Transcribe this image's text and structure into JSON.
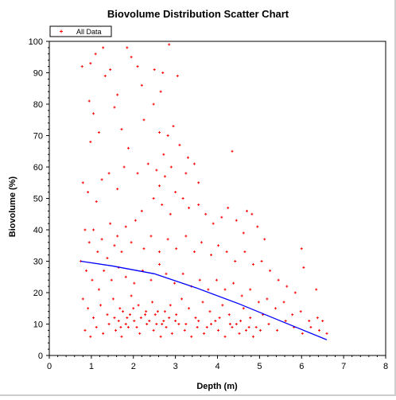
{
  "chart_data": {
    "type": "scatter",
    "title": "Biovolume Distribution Scatter Chart",
    "xlabel": "Depth (m)",
    "ylabel": "Biovolume (%)",
    "xlim": [
      0,
      8
    ],
    "ylim": [
      0,
      100
    ],
    "xticks": [
      "0",
      "1",
      "2",
      "3",
      "4",
      "5",
      "6",
      "7",
      "8"
    ],
    "yticks": [
      "0",
      "10",
      "20",
      "30",
      "40",
      "50",
      "60",
      "70",
      "80",
      "90",
      "100"
    ],
    "grid": false,
    "legend": {
      "placement": "top-left",
      "entries": [
        "All Data"
      ]
    },
    "colors": {
      "points": "#ff0000",
      "trend": "#0000ff",
      "axes": "#000000"
    },
    "series": [
      {
        "name": "All Data",
        "marker": "plus",
        "points": [
          [
            0.78,
            92
          ],
          [
            0.98,
            93
          ],
          [
            1.1,
            96
          ],
          [
            1.28,
            98
          ],
          [
            1.45,
            91
          ],
          [
            1.33,
            89
          ],
          [
            0.95,
            81
          ],
          [
            1.05,
            77
          ],
          [
            1.18,
            71
          ],
          [
            0.98,
            68
          ],
          [
            1.62,
            83
          ],
          [
            1.55,
            79
          ],
          [
            1.85,
            98
          ],
          [
            1.95,
            95
          ],
          [
            2.1,
            92
          ],
          [
            2.2,
            86
          ],
          [
            2.5,
            91
          ],
          [
            2.7,
            90
          ],
          [
            2.85,
            99
          ],
          [
            3.05,
            89
          ],
          [
            2.65,
            84
          ],
          [
            2.48,
            80
          ],
          [
            1.72,
            72
          ],
          [
            1.88,
            66
          ],
          [
            2.25,
            75
          ],
          [
            2.62,
            71
          ],
          [
            2.82,
            70
          ],
          [
            2.95,
            73
          ],
          [
            3.1,
            67
          ],
          [
            2.72,
            64
          ],
          [
            4.35,
            65
          ],
          [
            3.3,
            63
          ],
          [
            3.45,
            61
          ],
          [
            3.25,
            58
          ],
          [
            3.55,
            55
          ],
          [
            0.8,
            55
          ],
          [
            0.92,
            52
          ],
          [
            1.12,
            49
          ],
          [
            1.25,
            56
          ],
          [
            1.42,
            58
          ],
          [
            1.62,
            53
          ],
          [
            1.78,
            60
          ],
          [
            2.1,
            58
          ],
          [
            2.35,
            61
          ],
          [
            2.55,
            59
          ],
          [
            2.62,
            54
          ],
          [
            2.75,
            57
          ],
          [
            2.9,
            60
          ],
          [
            3.0,
            52
          ],
          [
            3.18,
            50
          ],
          [
            3.32,
            47
          ],
          [
            3.55,
            48
          ],
          [
            3.72,
            45
          ],
          [
            3.9,
            42
          ],
          [
            4.1,
            44
          ],
          [
            4.25,
            47
          ],
          [
            4.45,
            43
          ],
          [
            4.62,
            39
          ],
          [
            4.82,
            45
          ],
          [
            4.95,
            41
          ],
          [
            5.12,
            37
          ],
          [
            4.7,
            46
          ],
          [
            2.48,
            50
          ],
          [
            2.68,
            48
          ],
          [
            2.88,
            45
          ],
          [
            2.2,
            46
          ],
          [
            2.05,
            43
          ],
          [
            1.82,
            41
          ],
          [
            1.62,
            38
          ],
          [
            1.45,
            42
          ],
          [
            1.25,
            37
          ],
          [
            1.05,
            40
          ],
          [
            0.85,
            40
          ],
          [
            0.95,
            36
          ],
          [
            1.15,
            33
          ],
          [
            1.38,
            31
          ],
          [
            1.55,
            35
          ],
          [
            1.72,
            33
          ],
          [
            1.95,
            36
          ],
          [
            2.25,
            34
          ],
          [
            2.42,
            38
          ],
          [
            2.62,
            33
          ],
          [
            2.82,
            37
          ],
          [
            3.02,
            34
          ],
          [
            3.25,
            38
          ],
          [
            3.45,
            33
          ],
          [
            3.62,
            36
          ],
          [
            3.85,
            32
          ],
          [
            4.02,
            35
          ],
          [
            4.22,
            33
          ],
          [
            4.42,
            30
          ],
          [
            4.65,
            33
          ],
          [
            4.85,
            29
          ],
          [
            5.05,
            30
          ],
          [
            5.25,
            27
          ],
          [
            5.45,
            24
          ],
          [
            5.65,
            22
          ],
          [
            5.85,
            20
          ],
          [
            6.0,
            34
          ],
          [
            6.05,
            28
          ],
          [
            6.35,
            21
          ],
          [
            6.5,
            11
          ],
          [
            6.6,
            7
          ],
          [
            0.75,
            30
          ],
          [
            0.88,
            27
          ],
          [
            1.02,
            24
          ],
          [
            1.18,
            21
          ],
          [
            1.3,
            27
          ],
          [
            1.48,
            24
          ],
          [
            1.65,
            28
          ],
          [
            1.82,
            25
          ],
          [
            2.02,
            23
          ],
          [
            2.22,
            27
          ],
          [
            2.42,
            24
          ],
          [
            2.62,
            29
          ],
          [
            2.78,
            26
          ],
          [
            2.98,
            23
          ],
          [
            3.18,
            26
          ],
          [
            3.38,
            22
          ],
          [
            3.58,
            24
          ],
          [
            3.78,
            21
          ],
          [
            3.98,
            24
          ],
          [
            4.18,
            21
          ],
          [
            4.38,
            23
          ],
          [
            4.58,
            19
          ],
          [
            4.78,
            21
          ],
          [
            4.98,
            17
          ],
          [
            5.18,
            18
          ],
          [
            5.38,
            15
          ],
          [
            5.58,
            17
          ],
          [
            5.78,
            13
          ],
          [
            5.98,
            14
          ],
          [
            6.18,
            11
          ],
          [
            6.38,
            12
          ],
          [
            0.8,
            18
          ],
          [
            0.92,
            15
          ],
          [
            1.05,
            12
          ],
          [
            1.22,
            16
          ],
          [
            1.38,
            13
          ],
          [
            1.52,
            18
          ],
          [
            1.68,
            15
          ],
          [
            1.85,
            12
          ],
          [
            1.95,
            19
          ],
          [
            2.12,
            16
          ],
          [
            2.28,
            13
          ],
          [
            2.45,
            17
          ],
          [
            2.58,
            14
          ],
          [
            2.72,
            11
          ],
          [
            2.88,
            16
          ],
          [
            3.02,
            13
          ],
          [
            3.15,
            18
          ],
          [
            3.32,
            15
          ],
          [
            3.48,
            12
          ],
          [
            3.65,
            17
          ],
          [
            3.82,
            14
          ],
          [
            3.95,
            11
          ],
          [
            4.12,
            16
          ],
          [
            4.28,
            13
          ],
          [
            4.45,
            10
          ],
          [
            4.62,
            15
          ],
          [
            4.78,
            12
          ],
          [
            4.92,
            9
          ],
          [
            5.08,
            13
          ],
          [
            5.22,
            10
          ],
          [
            5.42,
            8
          ],
          [
            5.62,
            11
          ],
          [
            5.82,
            9
          ],
          [
            6.02,
            7
          ],
          [
            6.22,
            9
          ],
          [
            6.42,
            8
          ],
          [
            0.85,
            8
          ],
          [
            0.98,
            6
          ],
          [
            1.12,
            9
          ],
          [
            1.28,
            7
          ],
          [
            1.42,
            10
          ],
          [
            1.58,
            8
          ],
          [
            1.72,
            6
          ],
          [
            1.88,
            9
          ],
          [
            2.02,
            11
          ],
          [
            2.15,
            7
          ],
          [
            2.32,
            10
          ],
          [
            2.48,
            8
          ],
          [
            2.65,
            6
          ],
          [
            2.78,
            9
          ],
          [
            2.92,
            7
          ],
          [
            3.08,
            10
          ],
          [
            3.22,
            8
          ],
          [
            3.38,
            6
          ],
          [
            3.52,
            9
          ],
          [
            3.68,
            7
          ],
          [
            3.85,
            10
          ],
          [
            4.02,
            8
          ],
          [
            4.18,
            6
          ],
          [
            4.35,
            9
          ],
          [
            4.52,
            7
          ],
          [
            4.68,
            8
          ],
          [
            4.85,
            6
          ],
          [
            5.02,
            8
          ],
          [
            1.82,
            10
          ],
          [
            1.92,
            13
          ],
          [
            2.08,
            9
          ],
          [
            2.18,
            12
          ],
          [
            2.38,
            11
          ],
          [
            2.52,
            13
          ],
          [
            2.68,
            10
          ],
          [
            2.85,
            12
          ],
          [
            1.65,
            11
          ],
          [
            1.75,
            14
          ],
          [
            2.0,
            15
          ],
          [
            2.3,
            14
          ],
          [
            2.55,
            10
          ],
          [
            2.75,
            14
          ],
          [
            3.0,
            11
          ],
          [
            3.25,
            10
          ],
          [
            3.55,
            11
          ],
          [
            3.75,
            9
          ],
          [
            4.05,
            12
          ],
          [
            4.3,
            10
          ],
          [
            4.55,
            11
          ],
          [
            4.75,
            9
          ],
          [
            1.55,
            12
          ],
          [
            1.7,
            9
          ]
        ]
      }
    ],
    "trend_line": {
      "points": [
        [
          0.75,
          30
        ],
        [
          1.5,
          28.5
        ],
        [
          2.5,
          26
        ],
        [
          3.5,
          21.5
        ],
        [
          4.5,
          16.5
        ],
        [
          5.5,
          11
        ],
        [
          6.6,
          5
        ]
      ]
    }
  }
}
